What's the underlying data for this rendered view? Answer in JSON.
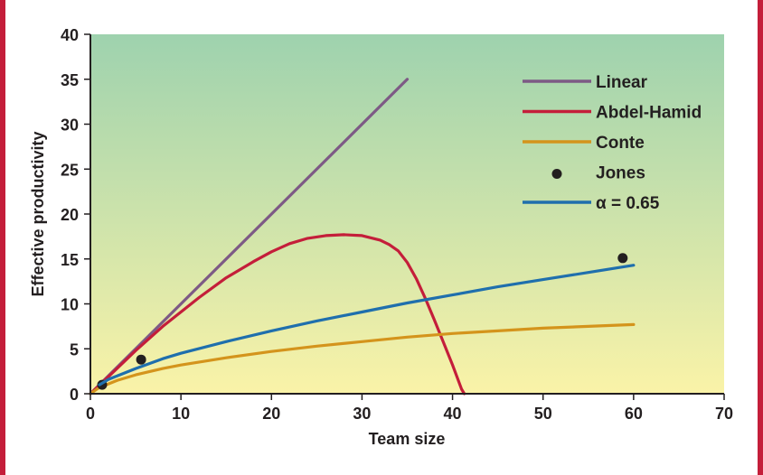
{
  "colors": {
    "frame_accent": "#c41e3a",
    "bg_top": "#9ed2ae",
    "bg_bottom": "#faf3a8",
    "axis": "#231f20"
  },
  "chart_data": {
    "type": "line",
    "title": "",
    "xlabel": "Team size",
    "ylabel": "Effective productivity",
    "xlim": [
      0,
      70
    ],
    "ylim": [
      0,
      40
    ],
    "x_ticks": [
      0,
      10,
      20,
      30,
      40,
      50,
      60,
      70
    ],
    "y_ticks": [
      0,
      5,
      10,
      15,
      20,
      25,
      30,
      35,
      40
    ],
    "grid": false,
    "legend_position": "top-right",
    "series": [
      {
        "name": "Linear",
        "kind": "line",
        "color": "#7d5a85",
        "points": [
          [
            0,
            0
          ],
          [
            35,
            35
          ]
        ]
      },
      {
        "name": "Abdel-Hamid",
        "kind": "line",
        "color": "#c41e3a",
        "points": [
          [
            0,
            0
          ],
          [
            2,
            1.9
          ],
          [
            5,
            4.8
          ],
          [
            8,
            7.5
          ],
          [
            10,
            9.1
          ],
          [
            12,
            10.7
          ],
          [
            15,
            12.9
          ],
          [
            18,
            14.7
          ],
          [
            20,
            15.8
          ],
          [
            22,
            16.7
          ],
          [
            24,
            17.3
          ],
          [
            26,
            17.6
          ],
          [
            28,
            17.7
          ],
          [
            30,
            17.6
          ],
          [
            32,
            17.1
          ],
          [
            33,
            16.6
          ],
          [
            34,
            15.9
          ],
          [
            35,
            14.6
          ],
          [
            36,
            12.8
          ],
          [
            37,
            10.6
          ],
          [
            38,
            8.2
          ],
          [
            39,
            5.7
          ],
          [
            40,
            3.2
          ],
          [
            41,
            0.5
          ],
          [
            41.3,
            0
          ]
        ]
      },
      {
        "name": "Conte",
        "kind": "line",
        "color": "#d4941c",
        "points": [
          [
            0,
            0
          ],
          [
            1,
            0.7
          ],
          [
            2,
            1.1
          ],
          [
            3,
            1.5
          ],
          [
            5,
            2.1
          ],
          [
            8,
            2.8
          ],
          [
            10,
            3.2
          ],
          [
            15,
            4.0
          ],
          [
            20,
            4.7
          ],
          [
            25,
            5.3
          ],
          [
            30,
            5.8
          ],
          [
            35,
            6.3
          ],
          [
            40,
            6.7
          ],
          [
            45,
            7.0
          ],
          [
            50,
            7.3
          ],
          [
            55,
            7.5
          ],
          [
            60,
            7.7
          ]
        ]
      },
      {
        "name": "Jones",
        "kind": "scatter",
        "color": "#231f20",
        "points": [
          [
            1.3,
            1.0
          ],
          [
            5.6,
            3.8
          ],
          [
            58.8,
            15.1
          ]
        ]
      },
      {
        "name": "α = 0.65",
        "kind": "line",
        "color": "#1f6fad",
        "points": [
          [
            1,
            1.0
          ],
          [
            2,
            1.6
          ],
          [
            3,
            2.0
          ],
          [
            5,
            2.8
          ],
          [
            8,
            3.9
          ],
          [
            10,
            4.5
          ],
          [
            15,
            5.8
          ],
          [
            20,
            7.0
          ],
          [
            25,
            8.1
          ],
          [
            30,
            9.1
          ],
          [
            35,
            10.1
          ],
          [
            40,
            11.0
          ],
          [
            45,
            11.9
          ],
          [
            50,
            12.7
          ],
          [
            55,
            13.5
          ],
          [
            60,
            14.3
          ]
        ]
      }
    ]
  }
}
